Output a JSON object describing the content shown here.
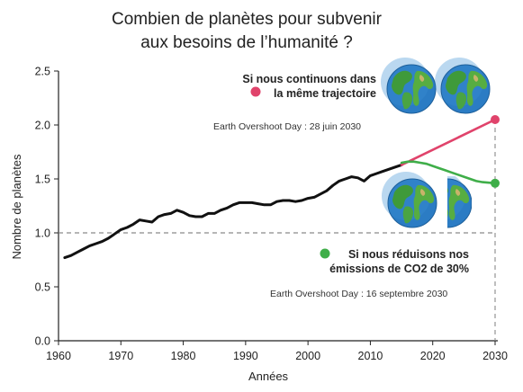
{
  "chart_data": {
    "type": "line",
    "title_lines": [
      "Combien de planètes pour subvenir",
      "aux besoins de l’humanité ?"
    ],
    "xlabel": "Années",
    "ylabel": "Nombre de planètes",
    "xlim": [
      1960,
      2030
    ],
    "ylim": [
      0,
      2.5
    ],
    "x_ticks": [
      "1960",
      "1970",
      "1980",
      "1990",
      "2000",
      "2010",
      "2020",
      "2030"
    ],
    "y_ticks": [
      "0.0",
      "0.5",
      "1.0",
      "1.5",
      "2.0",
      "2.5"
    ],
    "reference_line": {
      "y": 1.0,
      "style": "dashed"
    },
    "series": [
      {
        "color": "#111111",
        "x": [
          1961,
          1962,
          1963,
          1964,
          1965,
          1966,
          1967,
          1968,
          1969,
          1970,
          1971,
          1972,
          1973,
          1974,
          1975,
          1976,
          1977,
          1978,
          1979,
          1980,
          1981,
          1982,
          1983,
          1984,
          1985,
          1986,
          1987,
          1988,
          1989,
          1990,
          1991,
          1992,
          1993,
          1994,
          1995,
          1996,
          1997,
          1998,
          1999,
          2000,
          2001,
          2002,
          2003,
          2004,
          2005,
          2006,
          2007,
          2008,
          2009,
          2010,
          2011,
          2012,
          2013,
          2014,
          2015
        ],
        "values": [
          0.77,
          0.79,
          0.82,
          0.85,
          0.88,
          0.9,
          0.92,
          0.95,
          0.99,
          1.03,
          1.05,
          1.08,
          1.12,
          1.11,
          1.1,
          1.15,
          1.17,
          1.18,
          1.21,
          1.19,
          1.16,
          1.15,
          1.15,
          1.18,
          1.18,
          1.21,
          1.23,
          1.26,
          1.28,
          1.28,
          1.28,
          1.27,
          1.26,
          1.26,
          1.29,
          1.3,
          1.3,
          1.29,
          1.3,
          1.32,
          1.33,
          1.36,
          1.39,
          1.44,
          1.48,
          1.5,
          1.52,
          1.51,
          1.48,
          1.53,
          1.55,
          1.57,
          1.59,
          1.61,
          1.63
        ]
      },
      {
        "color": "#e0436b",
        "x": [
          2015,
          2030
        ],
        "values": [
          1.63,
          2.05
        ]
      },
      {
        "color": "#3fae49",
        "x": [
          2015,
          2016,
          2017,
          2018,
          2019,
          2020,
          2021,
          2022,
          2023,
          2024,
          2025,
          2026,
          2027,
          2028,
          2029,
          2030
        ],
        "values": [
          1.65,
          1.66,
          1.66,
          1.65,
          1.64,
          1.62,
          1.6,
          1.58,
          1.56,
          1.54,
          1.52,
          1.5,
          1.48,
          1.47,
          1.465,
          1.46
        ]
      }
    ],
    "annotations": {
      "scenario_high_lines": [
        "Si nous continuons dans",
        "la même trajectoire"
      ],
      "scenario_high_date": "Earth Overshoot Day : 28 juin 2030",
      "scenario_high_color": "#e0436b",
      "scenario_low_lines": [
        "Si nous réduisons nos",
        "émissions de CO2 de 30%"
      ],
      "scenario_low_date": "Earth Overshoot Day : 16 septembre 2030",
      "scenario_low_color": "#3fae49"
    },
    "icons": {
      "high_scenario": [
        "earth-globe-icon",
        "earth-globe-icon"
      ],
      "low_scenario": [
        "earth-globe-icon",
        "earth-globe-half-icon"
      ]
    }
  }
}
